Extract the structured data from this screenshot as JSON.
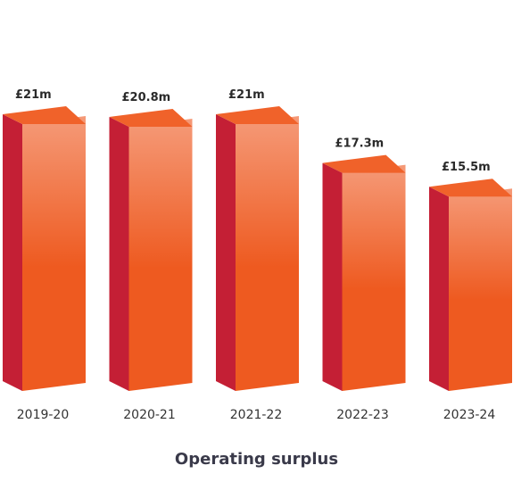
{
  "chart_data": {
    "type": "bar",
    "title": "Operating surplus",
    "categories": [
      "2019-20",
      "2020-21",
      "2021-22",
      "2022-23",
      "2023-24"
    ],
    "values": [
      21,
      20.8,
      21,
      17.3,
      15.5
    ],
    "data_labels": [
      "£21m",
      "£20.8m",
      "£21m",
      "£17.3m",
      "£15.5m"
    ],
    "unit": "£m",
    "ylim": [
      0,
      21
    ],
    "grid": false,
    "legend": "none",
    "colors": {
      "front_top": "#F59A78",
      "front_bottom": "#EE5A20",
      "top_face": "#F0622A",
      "side_face": "#C41F35"
    }
  }
}
